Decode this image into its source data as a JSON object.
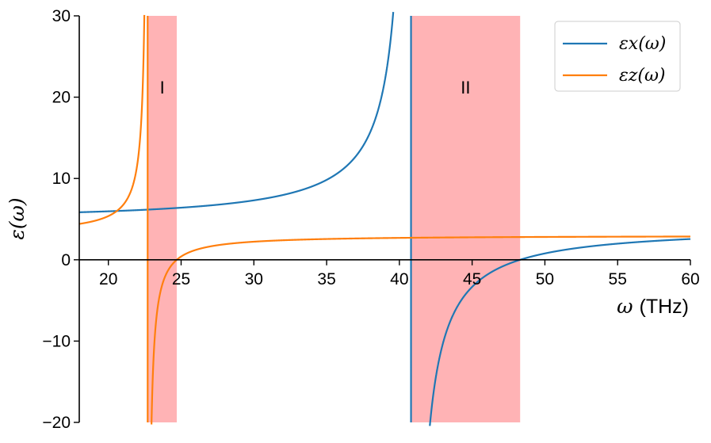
{
  "chart_data": {
    "type": "line",
    "xlabel_symbol": "ω",
    "xlabel_unit": "(THz)",
    "ylabel": "ε(ω)",
    "xlim": [
      18,
      60
    ],
    "ylim": [
      -20,
      30
    ],
    "x_ticks": [
      20,
      25,
      30,
      35,
      40,
      45,
      50,
      55,
      60
    ],
    "y_ticks": [
      -20,
      -10,
      0,
      10,
      20,
      30
    ],
    "y_tick_labels": [
      "−20",
      "−10",
      "0",
      "10",
      "20",
      "30"
    ],
    "grid": false,
    "legend_position": "top-right",
    "series": [
      {
        "name": "εx(ω)",
        "color": "#1f77b4",
        "model": {
          "eps_inf": 3.9,
          "omega_TO": 40.8,
          "omega_LO": 48.3
        }
      },
      {
        "name": "εz(ω)",
        "color": "#ff7f0e",
        "model": {
          "eps_inf": 2.95,
          "omega_TO": 22.7,
          "omega_LO": 24.7
        }
      }
    ],
    "bands": [
      {
        "label": "I",
        "x": [
          22.7,
          24.7
        ],
        "color": "#ffb3b5"
      },
      {
        "label": "II",
        "x": [
          40.8,
          48.3
        ],
        "color": "#ffb3b5"
      }
    ]
  }
}
